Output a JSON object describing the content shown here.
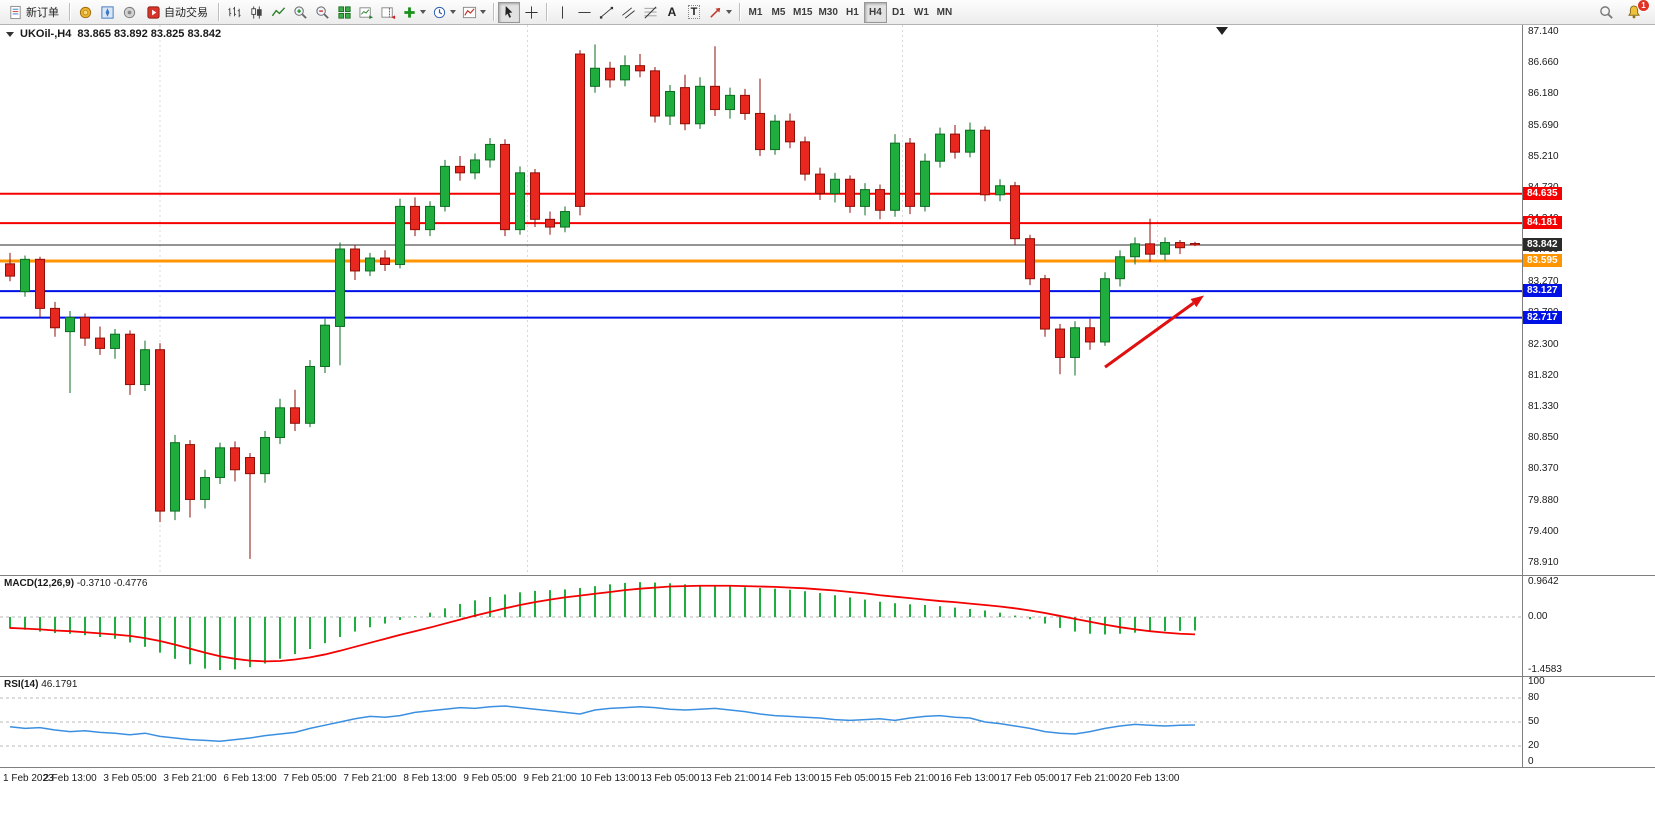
{
  "toolbar": {
    "new_order_label": "新订单",
    "autotrading_label": "自动交易",
    "timeframes": [
      "M1",
      "M5",
      "M15",
      "M30",
      "H1",
      "H4",
      "D1",
      "W1",
      "MN"
    ],
    "active_timeframe": "H4",
    "notification_count": "1",
    "text_tool_glyph": "A",
    "label_tool_glyph": "T"
  },
  "chart": {
    "symbol_period": "UKOil-,H4",
    "ohlc_text": "83.865 83.892 83.825 83.842"
  },
  "colors": {
    "bull": "#1fae3d",
    "bull_border": "#0c6e22",
    "bear": "#e8281e",
    "bear_border": "#8f0f08",
    "macd_hist": "#1fae3d",
    "macd_signal": "#f50000",
    "rsi_line": "#3b8fe0",
    "grid": "#d8d8d8",
    "level_dash": "#b8b8b8"
  },
  "chart_data": [
    {
      "type": "candlestick",
      "symbol": "UKOil-",
      "timeframe": "H4",
      "y_range": [
        78.73,
        87.25
      ],
      "y_ticks": [
        87.14,
        86.66,
        86.18,
        85.69,
        85.21,
        84.73,
        84.24,
        83.76,
        83.27,
        82.79,
        82.3,
        81.82,
        81.33,
        80.85,
        80.37,
        79.88,
        79.4,
        78.91
      ],
      "x_labels": [
        "1 Feb 2023",
        "2 Feb 13:00",
        "3 Feb 05:00",
        "3 Feb 21:00",
        "6 Feb 13:00",
        "7 Feb 05:00",
        "7 Feb 21:00",
        "8 Feb 13:00",
        "9 Feb 05:00",
        "9 Feb 21:00",
        "10 Feb 13:00",
        "13 Feb 05:00",
        "13 Feb 21:00",
        "14 Feb 13:00",
        "15 Feb 05:00",
        "15 Feb 21:00",
        "16 Feb 13:00",
        "17 Feb 05:00",
        "17 Feb 21:00",
        "20 Feb 13:00"
      ],
      "bars_per_label": 4,
      "separators": [
        10,
        34.5,
        59.5,
        76.5
      ],
      "shift_marker_bar": 80.8,
      "hlines": [
        {
          "price": 84.635,
          "label": "84.635",
          "color": "#f50000",
          "width": 2
        },
        {
          "price": 84.181,
          "label": "84.181",
          "color": "#f50000",
          "width": 2
        },
        {
          "price": 83.842,
          "label": "83.842",
          "color": "#2b2b2b",
          "width": 1
        },
        {
          "price": 83.595,
          "label": "83.595",
          "color": "#ff9500",
          "width": 3
        },
        {
          "price": 83.127,
          "label": "83.127",
          "color": "#0011e6",
          "width": 2
        },
        {
          "price": 82.717,
          "label": "82.717",
          "color": "#0011e6",
          "width": 2
        }
      ],
      "arrow": {
        "x1_bar": 73.0,
        "price1": 81.95,
        "x2_bar": 79.6,
        "price2": 83.06,
        "color": "#e01010",
        "width": 3
      },
      "ohlc": [
        [
          83.55,
          83.72,
          83.28,
          83.36
        ],
        [
          83.12,
          83.68,
          83.04,
          83.62
        ],
        [
          83.62,
          83.66,
          82.72,
          82.86
        ],
        [
          82.86,
          82.96,
          82.42,
          82.56
        ],
        [
          82.5,
          82.82,
          81.55,
          82.72
        ],
        [
          82.72,
          82.78,
          82.28,
          82.4
        ],
        [
          82.4,
          82.58,
          82.14,
          82.24
        ],
        [
          82.24,
          82.54,
          82.08,
          82.46
        ],
        [
          82.46,
          82.52,
          81.52,
          81.68
        ],
        [
          81.68,
          82.36,
          81.58,
          82.22
        ],
        [
          82.22,
          82.32,
          79.55,
          79.72
        ],
        [
          79.72,
          80.9,
          79.58,
          80.78
        ],
        [
          80.75,
          80.82,
          79.62,
          79.9
        ],
        [
          79.9,
          80.36,
          79.76,
          80.24
        ],
        [
          80.24,
          80.78,
          80.14,
          80.7
        ],
        [
          80.7,
          80.8,
          80.18,
          80.36
        ],
        [
          80.55,
          80.62,
          78.98,
          80.3
        ],
        [
          80.3,
          80.96,
          80.16,
          80.86
        ],
        [
          80.86,
          81.46,
          80.76,
          81.32
        ],
        [
          81.32,
          81.6,
          80.96,
          81.08
        ],
        [
          81.08,
          82.06,
          81.02,
          81.96
        ],
        [
          81.96,
          82.7,
          81.86,
          82.6
        ],
        [
          82.58,
          83.88,
          81.98,
          83.78
        ],
        [
          83.78,
          83.84,
          83.3,
          83.44
        ],
        [
          83.44,
          83.72,
          83.36,
          83.64
        ],
        [
          83.64,
          83.76,
          83.44,
          83.54
        ],
        [
          83.54,
          84.56,
          83.48,
          84.44
        ],
        [
          84.44,
          84.58,
          83.98,
          84.08
        ],
        [
          84.08,
          84.52,
          83.98,
          84.44
        ],
        [
          84.44,
          85.16,
          84.36,
          85.06
        ],
        [
          85.06,
          85.22,
          84.84,
          84.96
        ],
        [
          84.96,
          85.26,
          84.86,
          85.16
        ],
        [
          85.16,
          85.5,
          85.04,
          85.4
        ],
        [
          85.4,
          85.48,
          83.98,
          84.08
        ],
        [
          84.08,
          85.06,
          84.0,
          84.96
        ],
        [
          84.96,
          85.02,
          84.12,
          84.24
        ],
        [
          84.24,
          84.36,
          84.0,
          84.12
        ],
        [
          84.12,
          84.44,
          84.04,
          84.36
        ],
        [
          86.8,
          86.86,
          84.3,
          84.44
        ],
        [
          86.3,
          86.95,
          86.2,
          86.58
        ],
        [
          86.58,
          86.68,
          86.28,
          86.4
        ],
        [
          86.4,
          86.78,
          86.3,
          86.62
        ],
        [
          86.62,
          86.8,
          86.44,
          86.54
        ],
        [
          86.54,
          86.6,
          85.74,
          85.84
        ],
        [
          85.84,
          86.32,
          85.7,
          86.22
        ],
        [
          86.28,
          86.48,
          85.62,
          85.72
        ],
        [
          85.72,
          86.44,
          85.64,
          86.3
        ],
        [
          86.3,
          86.92,
          85.84,
          85.94
        ],
        [
          85.94,
          86.28,
          85.8,
          86.16
        ],
        [
          86.16,
          86.26,
          85.78,
          85.88
        ],
        [
          85.88,
          86.42,
          85.22,
          85.32
        ],
        [
          85.32,
          85.86,
          85.24,
          85.76
        ],
        [
          85.76,
          85.88,
          85.34,
          85.44
        ],
        [
          85.44,
          85.52,
          84.84,
          84.94
        ],
        [
          84.94,
          85.04,
          84.54,
          84.64
        ],
        [
          84.64,
          84.96,
          84.5,
          84.86
        ],
        [
          84.86,
          84.92,
          84.34,
          84.44
        ],
        [
          84.44,
          84.8,
          84.3,
          84.7
        ],
        [
          84.7,
          84.78,
          84.24,
          84.38
        ],
        [
          84.38,
          85.56,
          84.28,
          85.42
        ],
        [
          85.42,
          85.5,
          84.32,
          84.44
        ],
        [
          84.44,
          85.26,
          84.36,
          85.14
        ],
        [
          85.14,
          85.66,
          85.04,
          85.56
        ],
        [
          85.56,
          85.7,
          85.18,
          85.28
        ],
        [
          85.28,
          85.74,
          85.2,
          85.62
        ],
        [
          85.62,
          85.68,
          84.52,
          84.62
        ],
        [
          84.62,
          84.86,
          84.52,
          84.76
        ],
        [
          84.76,
          84.82,
          83.84,
          83.94
        ],
        [
          83.94,
          84.0,
          83.22,
          83.32
        ],
        [
          83.32,
          83.38,
          82.42,
          82.54
        ],
        [
          82.54,
          82.62,
          81.84,
          82.1
        ],
        [
          82.1,
          82.66,
          81.82,
          82.56
        ],
        [
          82.56,
          82.7,
          82.22,
          82.34
        ],
        [
          82.34,
          83.42,
          82.28,
          83.32
        ],
        [
          83.32,
          83.76,
          83.2,
          83.66
        ],
        [
          83.66,
          83.96,
          83.54,
          83.86
        ],
        [
          83.86,
          84.25,
          83.58,
          83.7
        ],
        [
          83.7,
          83.96,
          83.6,
          83.88
        ],
        [
          83.88,
          83.92,
          83.7,
          83.8
        ],
        [
          83.865,
          83.892,
          83.825,
          83.842
        ]
      ]
    },
    {
      "type": "bar",
      "label": "MACD(12,26,9)",
      "values_label": "-0.3710 -0.4776",
      "y_range": [
        -1.4583,
        0.9642
      ],
      "y_labels": [
        {
          "text": "0.9642",
          "value": 0.9642
        },
        {
          "text": "0.00",
          "value": 0
        },
        {
          "text": "-1.4583",
          "value": -1.4583
        }
      ],
      "histogram": [
        -0.32,
        -0.35,
        -0.4,
        -0.44,
        -0.46,
        -0.5,
        -0.55,
        -0.6,
        -0.7,
        -0.82,
        -0.98,
        -1.15,
        -1.3,
        -1.42,
        -1.46,
        -1.44,
        -1.38,
        -1.28,
        -1.15,
        -1.02,
        -0.88,
        -0.72,
        -0.55,
        -0.4,
        -0.28,
        -0.18,
        -0.08,
        0.02,
        0.12,
        0.24,
        0.36,
        0.46,
        0.55,
        0.62,
        0.68,
        0.72,
        0.74,
        0.76,
        0.8,
        0.85,
        0.9,
        0.94,
        0.96,
        0.95,
        0.93,
        0.9,
        0.88,
        0.86,
        0.84,
        0.82,
        0.8,
        0.78,
        0.75,
        0.71,
        0.66,
        0.6,
        0.54,
        0.48,
        0.42,
        0.38,
        0.35,
        0.33,
        0.3,
        0.26,
        0.22,
        0.18,
        0.12,
        0.04,
        -0.06,
        -0.18,
        -0.3,
        -0.4,
        -0.46,
        -0.48,
        -0.46,
        -0.43,
        -0.41,
        -0.39,
        -0.38,
        -0.371
      ],
      "signal": [
        -0.3,
        -0.32,
        -0.34,
        -0.37,
        -0.39,
        -0.42,
        -0.45,
        -0.48,
        -0.52,
        -0.58,
        -0.66,
        -0.76,
        -0.87,
        -0.98,
        -1.08,
        -1.15,
        -1.2,
        -1.22,
        -1.21,
        -1.17,
        -1.11,
        -1.03,
        -0.93,
        -0.82,
        -0.71,
        -0.6,
        -0.49,
        -0.39,
        -0.29,
        -0.18,
        -0.07,
        0.04,
        0.14,
        0.24,
        0.33,
        0.41,
        0.48,
        0.54,
        0.59,
        0.64,
        0.69,
        0.74,
        0.78,
        0.81,
        0.84,
        0.85,
        0.86,
        0.86,
        0.86,
        0.85,
        0.84,
        0.83,
        0.81,
        0.79,
        0.76,
        0.73,
        0.69,
        0.65,
        0.6,
        0.56,
        0.52,
        0.48,
        0.44,
        0.41,
        0.37,
        0.33,
        0.29,
        0.24,
        0.18,
        0.11,
        0.03,
        -0.05,
        -0.13,
        -0.21,
        -0.28,
        -0.34,
        -0.39,
        -0.43,
        -0.46,
        -0.478
      ]
    },
    {
      "type": "line",
      "label": "RSI(14)",
      "value_label": "46.1791",
      "y_range": [
        0,
        100
      ],
      "levels": [
        80,
        50,
        20
      ],
      "y_labels": [
        {
          "text": "100",
          "value": 100
        },
        {
          "text": "80",
          "value": 80
        },
        {
          "text": "50",
          "value": 50
        },
        {
          "text": "20",
          "value": 20
        },
        {
          "text": "0",
          "value": 0
        }
      ],
      "values": [
        44,
        42,
        43,
        40,
        38,
        39,
        37,
        36,
        34,
        36,
        32,
        30,
        28,
        27,
        26,
        28,
        30,
        33,
        35,
        37,
        42,
        46,
        50,
        54,
        57,
        56,
        58,
        62,
        64,
        66,
        68,
        67,
        69,
        70,
        68,
        66,
        64,
        62,
        60,
        65,
        67,
        68,
        69,
        68,
        66,
        65,
        66,
        67,
        65,
        63,
        60,
        58,
        57,
        56,
        55,
        53,
        52,
        53,
        54,
        52,
        55,
        57,
        58,
        56,
        55,
        50,
        48,
        45,
        42,
        38,
        36,
        35,
        38,
        42,
        45,
        47,
        46,
        45,
        46,
        46.18
      ]
    }
  ]
}
